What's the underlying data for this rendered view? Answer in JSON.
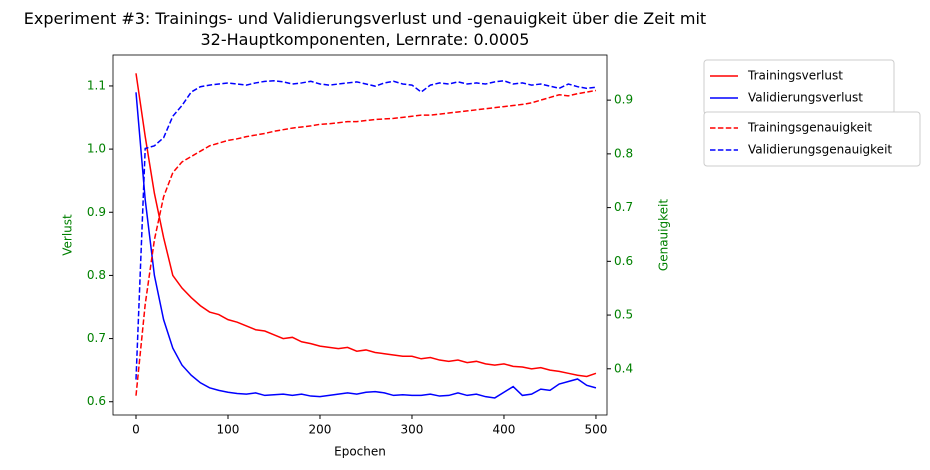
{
  "chart_data": {
    "type": "line",
    "title": "Experiment #3: Trainings- und Validierungsverlust und -genauigkeit über die Zeit mit\n32-Hauptkomponenten, Lernrate: 0.0005",
    "x_label": "Epochen",
    "y_label": "Verlust",
    "y2_label": "Genauigkeit",
    "x": [
      0,
      10,
      20,
      30,
      40,
      50,
      60,
      70,
      80,
      90,
      100,
      110,
      120,
      130,
      140,
      150,
      160,
      170,
      180,
      190,
      200,
      210,
      220,
      230,
      240,
      250,
      260,
      270,
      280,
      290,
      300,
      310,
      320,
      330,
      340,
      350,
      360,
      370,
      380,
      390,
      400,
      410,
      420,
      430,
      440,
      450,
      460,
      470,
      480,
      490,
      500
    ],
    "series": [
      {
        "name": "Trainingsverlust",
        "color": "#ff0000",
        "dashed": false,
        "values": [
          1.12,
          1.02,
          0.93,
          0.86,
          0.8,
          0.78,
          0.765,
          0.752,
          0.742,
          0.738,
          0.73,
          0.726,
          0.72,
          0.714,
          0.712,
          0.706,
          0.7,
          0.702,
          0.695,
          0.692,
          0.688,
          0.686,
          0.684,
          0.686,
          0.68,
          0.682,
          0.678,
          0.676,
          0.674,
          0.672,
          0.672,
          0.668,
          0.67,
          0.666,
          0.664,
          0.666,
          0.662,
          0.664,
          0.66,
          0.658,
          0.66,
          0.656,
          0.655,
          0.652,
          0.654,
          0.65,
          0.648,
          0.645,
          0.642,
          0.64,
          0.645
        ]
      },
      {
        "name": "Validierungsverlust",
        "color": "#0000ff",
        "dashed": false,
        "values": [
          1.09,
          0.92,
          0.8,
          0.73,
          0.685,
          0.658,
          0.642,
          0.63,
          0.622,
          0.618,
          0.615,
          0.613,
          0.612,
          0.614,
          0.61,
          0.611,
          0.612,
          0.61,
          0.612,
          0.609,
          0.608,
          0.61,
          0.612,
          0.614,
          0.612,
          0.615,
          0.616,
          0.614,
          0.61,
          0.611,
          0.61,
          0.61,
          0.612,
          0.609,
          0.61,
          0.614,
          0.61,
          0.612,
          0.608,
          0.606,
          0.615,
          0.624,
          0.61,
          0.612,
          0.62,
          0.618,
          0.628,
          0.632,
          0.636,
          0.626,
          0.622
        ]
      },
      {
        "name": "Trainingsgenauigkeit",
        "color": "#ff0000",
        "dashed": true,
        "axis": "y2",
        "values": [
          0.35,
          0.52,
          0.64,
          0.72,
          0.765,
          0.785,
          0.795,
          0.805,
          0.815,
          0.82,
          0.825,
          0.828,
          0.832,
          0.835,
          0.838,
          0.842,
          0.845,
          0.848,
          0.85,
          0.852,
          0.855,
          0.856,
          0.858,
          0.86,
          0.86,
          0.862,
          0.864,
          0.865,
          0.866,
          0.868,
          0.87,
          0.872,
          0.872,
          0.874,
          0.876,
          0.878,
          0.88,
          0.882,
          0.884,
          0.886,
          0.888,
          0.89,
          0.892,
          0.895,
          0.9,
          0.905,
          0.91,
          0.908,
          0.912,
          0.915,
          0.918
        ]
      },
      {
        "name": "Validierungsgenauigkeit",
        "color": "#0000ff",
        "dashed": true,
        "axis": "y2",
        "values": [
          0.38,
          0.81,
          0.815,
          0.83,
          0.87,
          0.89,
          0.915,
          0.925,
          0.928,
          0.93,
          0.932,
          0.93,
          0.928,
          0.932,
          0.935,
          0.936,
          0.934,
          0.93,
          0.932,
          0.935,
          0.93,
          0.928,
          0.93,
          0.932,
          0.934,
          0.93,
          0.926,
          0.932,
          0.935,
          0.93,
          0.928,
          0.915,
          0.928,
          0.932,
          0.93,
          0.934,
          0.93,
          0.932,
          0.93,
          0.934,
          0.936,
          0.93,
          0.932,
          0.928,
          0.93,
          0.926,
          0.922,
          0.93,
          0.925,
          0.922,
          0.924
        ]
      }
    ],
    "xlim": [
      -25,
      512
    ],
    "xticks": [
      0,
      100,
      200,
      300,
      400,
      500
    ],
    "ylim": [
      0.579,
      1.149
    ],
    "yticks": [
      0.6,
      0.7,
      0.8,
      0.9,
      {
        "value": 1,
        "label": "1.0"
      },
      1.1
    ],
    "y2lim": [
      0.314,
      0.984
    ],
    "y2ticks": [
      0.4,
      0.5,
      0.6,
      0.7,
      0.8,
      0.9
    ],
    "axis_label_color": "#008000"
  }
}
